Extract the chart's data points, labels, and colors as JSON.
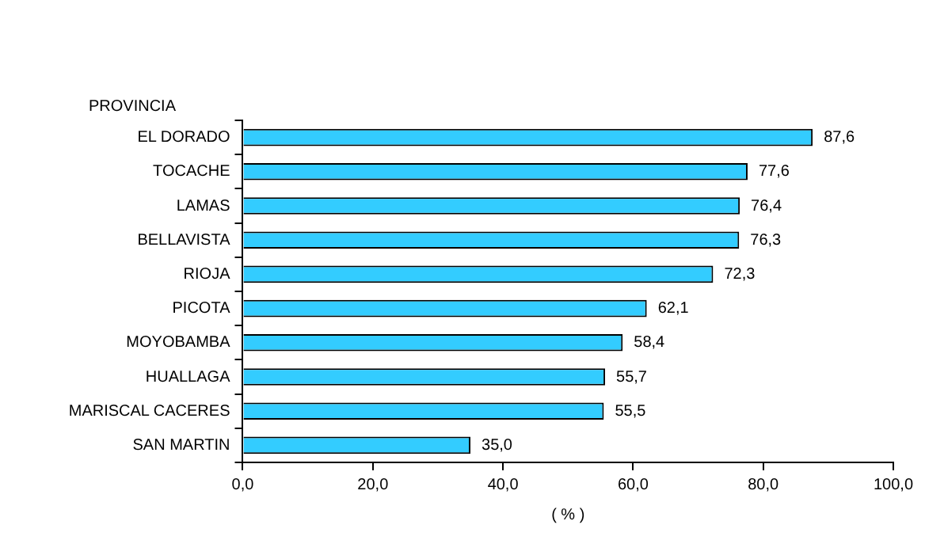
{
  "chart_data": {
    "type": "bar",
    "orientation": "horizontal",
    "ylabel": "PROVINCIA",
    "xlabel": "( % )",
    "categories": [
      "EL DORADO",
      "TOCACHE",
      "LAMAS",
      "BELLAVISTA",
      "RIOJA",
      "PICOTA",
      "MOYOBAMBA",
      "HUALLAGA",
      "MARISCAL CACERES",
      "SAN MARTIN"
    ],
    "values": [
      87.6,
      77.6,
      76.4,
      76.3,
      72.3,
      62.1,
      58.4,
      55.7,
      55.5,
      35.0
    ],
    "value_labels": [
      "87,6",
      "77,6",
      "76,4",
      "76,3",
      "72,3",
      "62,1",
      "58,4",
      "55,7",
      "55,5",
      "35,0"
    ],
    "color": "#33ccff",
    "xlim": [
      0,
      100
    ],
    "xticks": [
      {
        "value": 0,
        "label": "0,0"
      },
      {
        "value": 20,
        "label": "20,0"
      },
      {
        "value": 40,
        "label": "40,0"
      },
      {
        "value": 60,
        "label": "60,0"
      },
      {
        "value": 80,
        "label": "80,0"
      },
      {
        "value": 100,
        "label": "100,0"
      }
    ],
    "grid": false,
    "legend": false
  }
}
